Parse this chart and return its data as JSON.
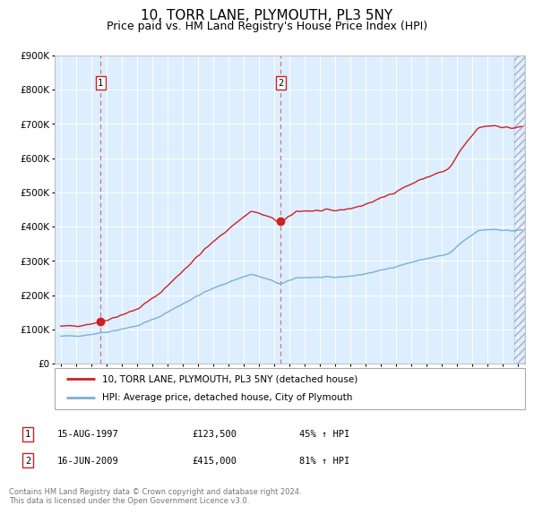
{
  "title": "10, TORR LANE, PLYMOUTH, PL3 5NY",
  "subtitle": "Price paid vs. HM Land Registry's House Price Index (HPI)",
  "title_fontsize": 11,
  "subtitle_fontsize": 9,
  "line_color_hpi": "#7ab0d4",
  "line_color_price": "#cc2222",
  "bg_color": "#ddeeff",
  "grid_color": "#ffffff",
  "ylim": [
    0,
    900000
  ],
  "yticks": [
    0,
    100000,
    200000,
    300000,
    400000,
    500000,
    600000,
    700000,
    800000,
    900000
  ],
  "sale1_date": "15-AUG-1997",
  "sale1_price": 123500,
  "sale1_hpi_pct": "45%",
  "sale1_year": 1997.62,
  "sale2_date": "16-JUN-2009",
  "sale2_price": 415000,
  "sale2_hpi_pct": "81%",
  "sale2_year": 2009.46,
  "legend_label1": "10, TORR LANE, PLYMOUTH, PL3 5NY (detached house)",
  "legend_label2": "HPI: Average price, detached house, City of Plymouth",
  "footer": "Contains HM Land Registry data © Crown copyright and database right 2024.\nThis data is licensed under the Open Government Licence v3.0.",
  "xmin": 1994.6,
  "xmax": 2025.5,
  "hpi_waypoints_t": [
    1995.0,
    1996.5,
    1998.0,
    2000.0,
    2001.5,
    2003.0,
    2004.5,
    2006.0,
    2007.5,
    2008.5,
    2009.5,
    2010.5,
    2012.0,
    2013.0,
    2014.5,
    2016.0,
    2017.5,
    2019.0,
    2020.5,
    2021.5,
    2022.5,
    2023.5,
    2024.5,
    2025.3
  ],
  "hpi_waypoints_v": [
    80000,
    83000,
    93000,
    110000,
    138000,
    175000,
    210000,
    238000,
    262000,
    248000,
    232000,
    252000,
    252000,
    252000,
    258000,
    272000,
    290000,
    307000,
    320000,
    360000,
    390000,
    393000,
    388000,
    390000
  ],
  "noise_seed": 42,
  "noise_scale": 2000,
  "smooth_sigma": 1.5
}
